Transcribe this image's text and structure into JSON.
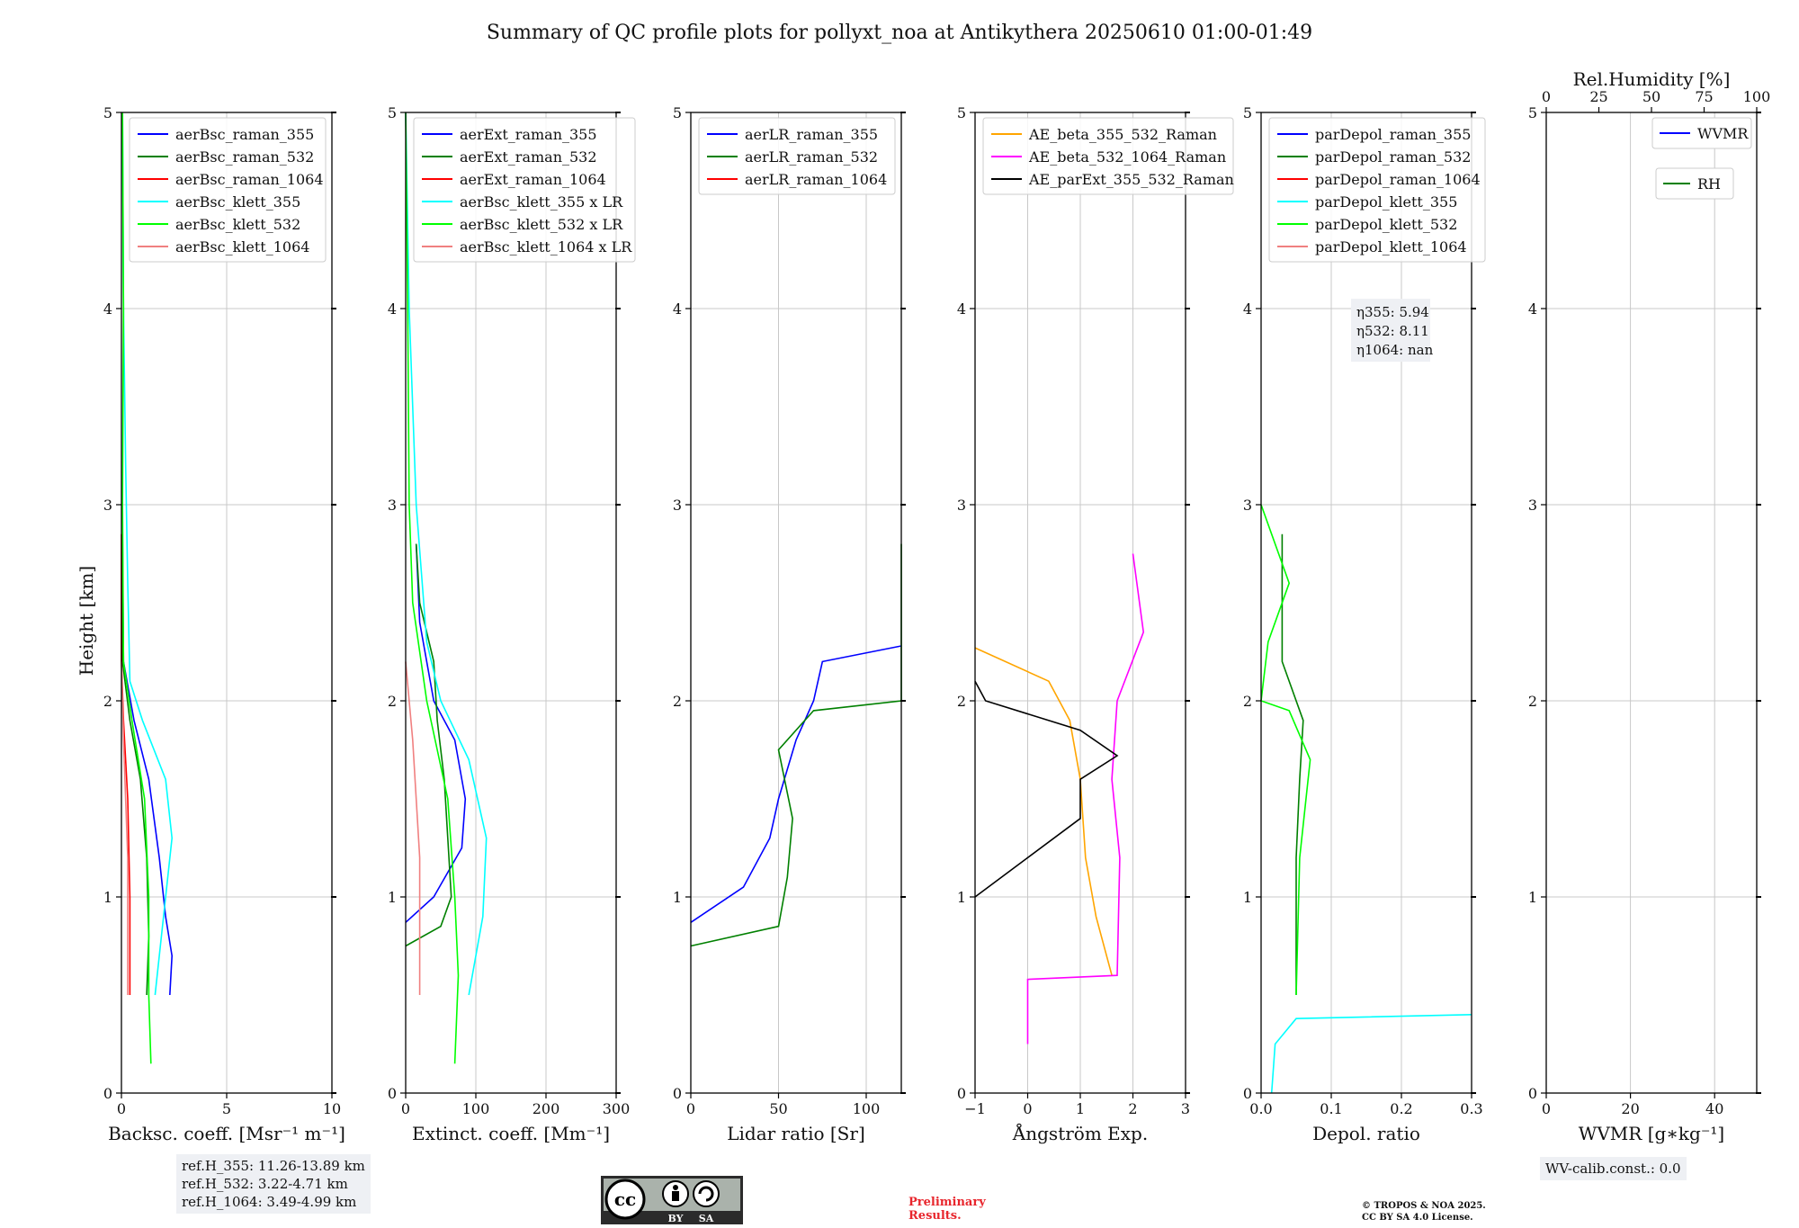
{
  "title": "Summary of QC profile plots for pollyxt_noa at Antikythera 20250610 01:00-01:49",
  "ylabel": "Height [km]",
  "ref_lines": [
    "ref.H_355: 11.26-13.89 km",
    "ref.H_532: 3.22-4.71 km",
    "ref.H_1064: 3.49-4.99 km"
  ],
  "wv_calib": "WV-calib.const.: 0.0",
  "preliminary": [
    "Preliminary",
    "Results."
  ],
  "copyright": [
    "© TROPOS & NOA 2025.",
    "CC BY SA 4.0 License."
  ],
  "cc_badge": {
    "by": "BY",
    "sa": "SA"
  },
  "eta_labels": [
    "η355: 5.94",
    "η532: 8.11",
    "η1064: nan"
  ],
  "colors": {
    "blue": "#0000ff",
    "green": "#008000",
    "red": "#ff0000",
    "cyan": "#00ffff",
    "lime": "#00ff00",
    "salmon": "#f08080",
    "orange": "#ffa500",
    "magenta": "#ff00ff",
    "black": "#000000"
  },
  "chart_data": [
    {
      "type": "line",
      "xlabel": "Backsc. coeff. [Msr⁻¹ m⁻¹]",
      "xlim": [
        0,
        10
      ],
      "ylim": [
        0,
        5
      ],
      "xticks": [
        "0",
        "5",
        "10"
      ],
      "xtick_vals": [
        0,
        5,
        10
      ],
      "yticks": [
        "0",
        "1",
        "2",
        "3",
        "4",
        "5"
      ],
      "legend": [
        "aerBsc_raman_355",
        "aerBsc_raman_532",
        "aerBsc_raman_1064",
        "aerBsc_klett_355",
        "aerBsc_klett_532",
        "aerBsc_klett_1064"
      ],
      "series": [
        {
          "name": "aerBsc_raman_355",
          "color": "#0000ff",
          "points": [
            [
              2.3,
              0.5
            ],
            [
              2.4,
              0.7
            ],
            [
              2.1,
              0.9
            ],
            [
              1.8,
              1.2
            ],
            [
              1.3,
              1.6
            ],
            [
              0.6,
              1.9
            ],
            [
              0.1,
              2.2
            ],
            [
              0.05,
              2.85
            ]
          ]
        },
        {
          "name": "aerBsc_raman_532",
          "color": "#008000",
          "points": [
            [
              1.2,
              0.5
            ],
            [
              1.3,
              0.8
            ],
            [
              1.2,
              1.2
            ],
            [
              0.9,
              1.6
            ],
            [
              0.4,
              1.9
            ],
            [
              0.05,
              2.2
            ],
            [
              0.05,
              2.85
            ]
          ]
        },
        {
          "name": "aerBsc_raman_1064",
          "color": "#ff0000",
          "points": [
            [
              0.4,
              0.5
            ],
            [
              0.4,
              1.0
            ],
            [
              0.3,
              1.5
            ],
            [
              0.1,
              1.9
            ],
            [
              0.0,
              2.2
            ],
            [
              0.0,
              2.85
            ]
          ]
        },
        {
          "name": "aerBsc_klett_355",
          "color": "#00ffff",
          "points": [
            [
              1.6,
              0.5
            ],
            [
              2.0,
              0.9
            ],
            [
              2.4,
              1.3
            ],
            [
              2.1,
              1.6
            ],
            [
              1.0,
              1.9
            ],
            [
              0.4,
              2.1
            ],
            [
              0.3,
              2.6
            ],
            [
              0.2,
              3.2
            ],
            [
              0.1,
              4.0
            ],
            [
              0.05,
              5.0
            ]
          ]
        },
        {
          "name": "aerBsc_klett_532",
          "color": "#00ff00",
          "points": [
            [
              1.4,
              0.15
            ],
            [
              1.3,
              0.5
            ],
            [
              1.3,
              1.0
            ],
            [
              1.1,
              1.5
            ],
            [
              0.5,
              1.9
            ],
            [
              0.1,
              2.2
            ],
            [
              0.05,
              3.0
            ],
            [
              0.1,
              4.0
            ],
            [
              0.05,
              5.0
            ]
          ]
        },
        {
          "name": "aerBsc_klett_1064",
          "color": "#f08080",
          "points": [
            [
              0.3,
              0.5
            ],
            [
              0.3,
              1.2
            ],
            [
              0.1,
              1.8
            ],
            [
              0.0,
              2.2
            ]
          ]
        }
      ]
    },
    {
      "type": "line",
      "xlabel": "Extinct. coeff. [Mm⁻¹]",
      "xlim": [
        0,
        300
      ],
      "ylim": [
        0,
        5
      ],
      "xticks": [
        "0",
        "100",
        "200",
        "300"
      ],
      "xtick_vals": [
        0,
        100,
        200,
        300
      ],
      "yticks": [
        "0",
        "1",
        "2",
        "3",
        "4",
        "5"
      ],
      "legend": [
        "aerExt_raman_355",
        "aerExt_raman_532",
        "aerExt_raman_1064",
        "aerBsc_klett_355 x LR",
        "aerBsc_klett_532 x LR",
        "aerBsc_klett_1064 x LR"
      ],
      "series": [
        {
          "name": "aerExt_raman_355",
          "color": "#0000ff",
          "points": [
            [
              0,
              0.87
            ],
            [
              40,
              1.0
            ],
            [
              80,
              1.25
            ],
            [
              85,
              1.5
            ],
            [
              70,
              1.8
            ],
            [
              40,
              2.0
            ],
            [
              20,
              2.4
            ],
            [
              15,
              2.8
            ]
          ]
        },
        {
          "name": "aerExt_raman_532",
          "color": "#008000",
          "points": [
            [
              0,
              0.75
            ],
            [
              50,
              0.85
            ],
            [
              65,
              1.0
            ],
            [
              60,
              1.3
            ],
            [
              55,
              1.6
            ],
            [
              45,
              1.9
            ],
            [
              40,
              2.2
            ],
            [
              20,
              2.5
            ],
            [
              15,
              2.8
            ]
          ]
        },
        {
          "name": "aerExt_raman_1064",
          "color": "#ff0000",
          "points": []
        },
        {
          "name": "aerBsc_klett_355 x LR",
          "color": "#00ffff",
          "points": [
            [
              90,
              0.5
            ],
            [
              110,
              0.9
            ],
            [
              115,
              1.3
            ],
            [
              90,
              1.7
            ],
            [
              50,
              2.0
            ],
            [
              30,
              2.3
            ],
            [
              15,
              3.0
            ],
            [
              5,
              4.0
            ],
            [
              0,
              5.0
            ]
          ]
        },
        {
          "name": "aerBsc_klett_532 x LR",
          "color": "#00ff00",
          "points": [
            [
              70,
              0.15
            ],
            [
              75,
              0.6
            ],
            [
              70,
              1.0
            ],
            [
              60,
              1.5
            ],
            [
              30,
              2.0
            ],
            [
              10,
              2.5
            ],
            [
              5,
              3.0
            ],
            [
              3,
              4.0
            ],
            [
              0,
              5.0
            ]
          ]
        },
        {
          "name": "aerBsc_klett_1064 x LR",
          "color": "#f08080",
          "points": [
            [
              20,
              0.5
            ],
            [
              20,
              1.2
            ],
            [
              10,
              1.8
            ],
            [
              0,
              2.2
            ]
          ]
        }
      ]
    },
    {
      "type": "line",
      "xlabel": "Lidar ratio [Sr]",
      "xlim": [
        0,
        120
      ],
      "ylim": [
        0,
        5
      ],
      "xticks": [
        "0",
        "50",
        "100"
      ],
      "xtick_vals": [
        0,
        50,
        100
      ],
      "yticks": [
        "0",
        "1",
        "2",
        "3",
        "4",
        "5"
      ],
      "legend": [
        "aerLR_raman_355",
        "aerLR_raman_532",
        "aerLR_raman_1064"
      ],
      "series": [
        {
          "name": "aerLR_raman_355",
          "color": "#0000ff",
          "points": [
            [
              0,
              0.87
            ],
            [
              30,
              1.05
            ],
            [
              45,
              1.3
            ],
            [
              50,
              1.5
            ],
            [
              60,
              1.8
            ],
            [
              70,
              2.0
            ],
            [
              75,
              2.2
            ],
            [
              120,
              2.28
            ]
          ]
        },
        {
          "name": "aerLR_raman_532",
          "color": "#008000",
          "points": [
            [
              0,
              0.75
            ],
            [
              50,
              0.85
            ],
            [
              55,
              1.1
            ],
            [
              58,
              1.4
            ],
            [
              50,
              1.75
            ],
            [
              70,
              1.95
            ],
            [
              120,
              2.0
            ],
            [
              120,
              2.8
            ]
          ]
        },
        {
          "name": "aerLR_raman_1064",
          "color": "#ff0000",
          "points": []
        }
      ]
    },
    {
      "type": "line",
      "xlabel": "Ångström Exp.",
      "xlim": [
        -1,
        3
      ],
      "ylim": [
        0,
        5
      ],
      "xticks": [
        "−1",
        "0",
        "1",
        "2",
        "3"
      ],
      "xtick_vals": [
        -1,
        0,
        1,
        2,
        3
      ],
      "yticks": [
        "0",
        "1",
        "2",
        "3",
        "4",
        "5"
      ],
      "legend": [
        "AE_beta_355_532_Raman",
        "AE_beta_532_1064_Raman",
        "AE_parExt_355_532_Raman"
      ],
      "series": [
        {
          "name": "AE_beta_355_532_Raman",
          "color": "#ffa500",
          "points": [
            [
              1.6,
              0.6
            ],
            [
              1.3,
              0.9
            ],
            [
              1.1,
              1.2
            ],
            [
              1.0,
              1.6
            ],
            [
              0.8,
              1.9
            ],
            [
              0.4,
              2.1
            ],
            [
              -1.0,
              2.27
            ]
          ]
        },
        {
          "name": "AE_beta_532_1064_Raman",
          "color": "#ff00ff",
          "points": [
            [
              0,
              0.25
            ],
            [
              0,
              0.58
            ],
            [
              1.7,
              0.6
            ],
            [
              1.75,
              1.2
            ],
            [
              1.6,
              1.6
            ],
            [
              1.7,
              2.0
            ],
            [
              2.2,
              2.35
            ],
            [
              2.0,
              2.75
            ]
          ]
        },
        {
          "name": "AE_parExt_355_532_Raman",
          "color": "#000000",
          "points": [
            [
              -1,
              1.0
            ],
            [
              0,
              1.2
            ],
            [
              1.0,
              1.4
            ],
            [
              1.0,
              1.6
            ],
            [
              1.7,
              1.72
            ],
            [
              1.0,
              1.85
            ],
            [
              -0.8,
              2.0
            ],
            [
              -1,
              2.1
            ]
          ]
        }
      ]
    },
    {
      "type": "line",
      "xlabel": "Depol. ratio",
      "xlim": [
        0,
        0.3
      ],
      "ylim": [
        0,
        5
      ],
      "xticks": [
        "0.0",
        "0.1",
        "0.2",
        "0.3"
      ],
      "xtick_vals": [
        0,
        0.1,
        0.2,
        0.3
      ],
      "yticks": [
        "0",
        "1",
        "2",
        "3",
        "4",
        "5"
      ],
      "legend": [
        "parDepol_raman_355",
        "parDepol_raman_532",
        "parDepol_raman_1064",
        "parDepol_klett_355",
        "parDepol_klett_532",
        "parDepol_klett_1064"
      ],
      "series": [
        {
          "name": "parDepol_raman_355",
          "color": "#0000ff",
          "points": []
        },
        {
          "name": "parDepol_raman_532",
          "color": "#008000",
          "points": [
            [
              0.05,
              0.5
            ],
            [
              0.05,
              1.2
            ],
            [
              0.055,
              1.6
            ],
            [
              0.06,
              1.9
            ],
            [
              0.03,
              2.2
            ],
            [
              0.03,
              2.5
            ],
            [
              0.03,
              2.85
            ]
          ]
        },
        {
          "name": "parDepol_raman_1064",
          "color": "#ff0000",
          "points": []
        },
        {
          "name": "parDepol_klett_355",
          "color": "#00ffff",
          "points": [
            [
              0.015,
              0.0
            ],
            [
              0.02,
              0.25
            ],
            [
              0.05,
              0.38
            ],
            [
              0.3,
              0.4
            ]
          ]
        },
        {
          "name": "parDepol_klett_532",
          "color": "#00ff00",
          "points": [
            [
              0.05,
              0.5
            ],
            [
              0.055,
              1.2
            ],
            [
              0.07,
              1.7
            ],
            [
              0.04,
              1.95
            ],
            [
              0,
              2.0
            ],
            [
              0.01,
              2.3
            ],
            [
              0.04,
              2.6
            ],
            [
              0.01,
              2.9
            ],
            [
              0,
              3.0
            ]
          ]
        },
        {
          "name": "parDepol_klett_1064",
          "color": "#f08080",
          "points": []
        }
      ]
    },
    {
      "type": "line",
      "xlabel": "WVMR [g∗kg⁻¹]",
      "top_xlabel": "Rel.Humidity [%]",
      "xlim": [
        0,
        50
      ],
      "ylim": [
        0,
        5
      ],
      "xticks": [
        "0",
        "20",
        "40"
      ],
      "xtick_vals": [
        0,
        20,
        40
      ],
      "top_xticks": [
        "0",
        "25",
        "50",
        "75",
        "100"
      ],
      "yticks": [
        "0",
        "1",
        "2",
        "3",
        "4",
        "5"
      ],
      "legend": [
        "WVMR",
        "RH"
      ],
      "series": [
        {
          "name": "WVMR",
          "color": "#0000ff",
          "points": []
        },
        {
          "name": "RH",
          "color": "#008000",
          "points": []
        }
      ]
    }
  ]
}
